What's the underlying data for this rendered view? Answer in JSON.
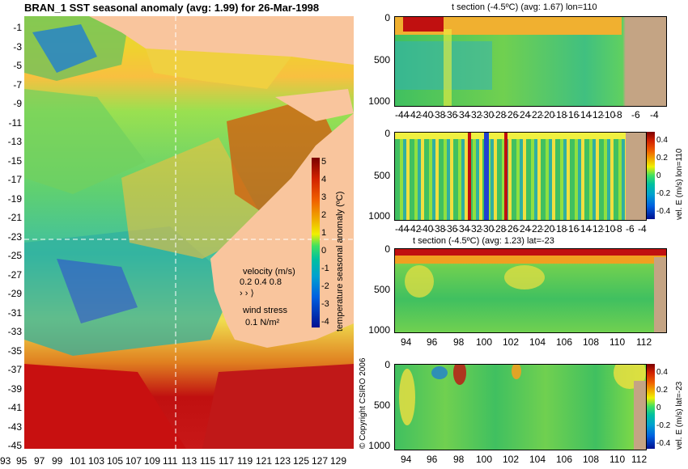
{
  "title": "BRAN_1  SST seasonal anomaly  (avg: 1.99)  for 26-Mar-1998",
  "map": {
    "lat_ticks": [
      "-1",
      "-3",
      "-5",
      "-7",
      "-9",
      "-11",
      "-13",
      "-15",
      "-17",
      "-19",
      "-21",
      "-23",
      "-25",
      "-27",
      "-29",
      "-31",
      "-33",
      "-35",
      "-37",
      "-39",
      "-41",
      "-43",
      "-45"
    ],
    "lon_ticks": [
      "93",
      "95",
      "97",
      "99",
      "101",
      "103",
      "105",
      "107",
      "109",
      "111",
      "113",
      "115",
      "117",
      "119",
      "121",
      "123",
      "125",
      "127",
      "129"
    ],
    "colorbar_ticks": [
      "5",
      "4",
      "3",
      "2",
      "1",
      "0",
      "-1",
      "-2",
      "-3",
      "-4"
    ],
    "colorbar_label": "temperature seasonal anomaly (ºC)",
    "legend_velocity_label": "velocity (m/s)",
    "legend_velocity_values": "0.2 0.4 0.8",
    "legend_wind_label": "wind stress",
    "legend_wind_value": "0.1 N/m²",
    "copyright": "© Copyright CSIRO 2006",
    "colors": {
      "land": "#f9c59d",
      "section_land": "#c4a484"
    }
  },
  "panels": [
    {
      "title": "t section (-4.5ºC)  (avg: 1.67) lon=110",
      "y_ticks": [
        "0",
        "500",
        "1000"
      ],
      "x_ticks": [
        "-44",
        "-42",
        "-40",
        "-38",
        "-36",
        "-34",
        "-32",
        "-30",
        "-28",
        "-26",
        "-24",
        "-22",
        "-20",
        "-18",
        "-16",
        "-14",
        "-12",
        "-10",
        "-8",
        "-6",
        "-4"
      ],
      "colorbar": null
    },
    {
      "title": "",
      "y_ticks": [
        "0",
        "500",
        "1000"
      ],
      "x_ticks": [
        "-44",
        "-42",
        "-40",
        "-38",
        "-36",
        "-34",
        "-32",
        "-30",
        "-28",
        "-26",
        "-24",
        "-22",
        "-20",
        "-18",
        "-16",
        "-14",
        "-12",
        "-10",
        "-8",
        "-6",
        "-4"
      ],
      "colorbar": {
        "ticks": [
          "0.4",
          "0.2",
          "0",
          "-0.2",
          "-0.4"
        ],
        "label": "vel. E (m/s) lon=110"
      }
    },
    {
      "title": "t section (-4.5ºC)  (avg: 1.23) lat=-23",
      "y_ticks": [
        "0",
        "500",
        "1000"
      ],
      "x_ticks": [
        "94",
        "96",
        "98",
        "100",
        "102",
        "104",
        "106",
        "108",
        "110",
        "112"
      ],
      "colorbar": null
    },
    {
      "title": "",
      "y_ticks": [
        "0",
        "500",
        "1000"
      ],
      "x_ticks": [
        "94",
        "96",
        "98",
        "100",
        "102",
        "104",
        "106",
        "108",
        "110",
        "112"
      ],
      "colorbar": {
        "ticks": [
          "0.4",
          "0.2",
          "0",
          "-0.2",
          "-0.4"
        ],
        "label": "vel. E (m/s) lat=-23"
      }
    }
  ]
}
